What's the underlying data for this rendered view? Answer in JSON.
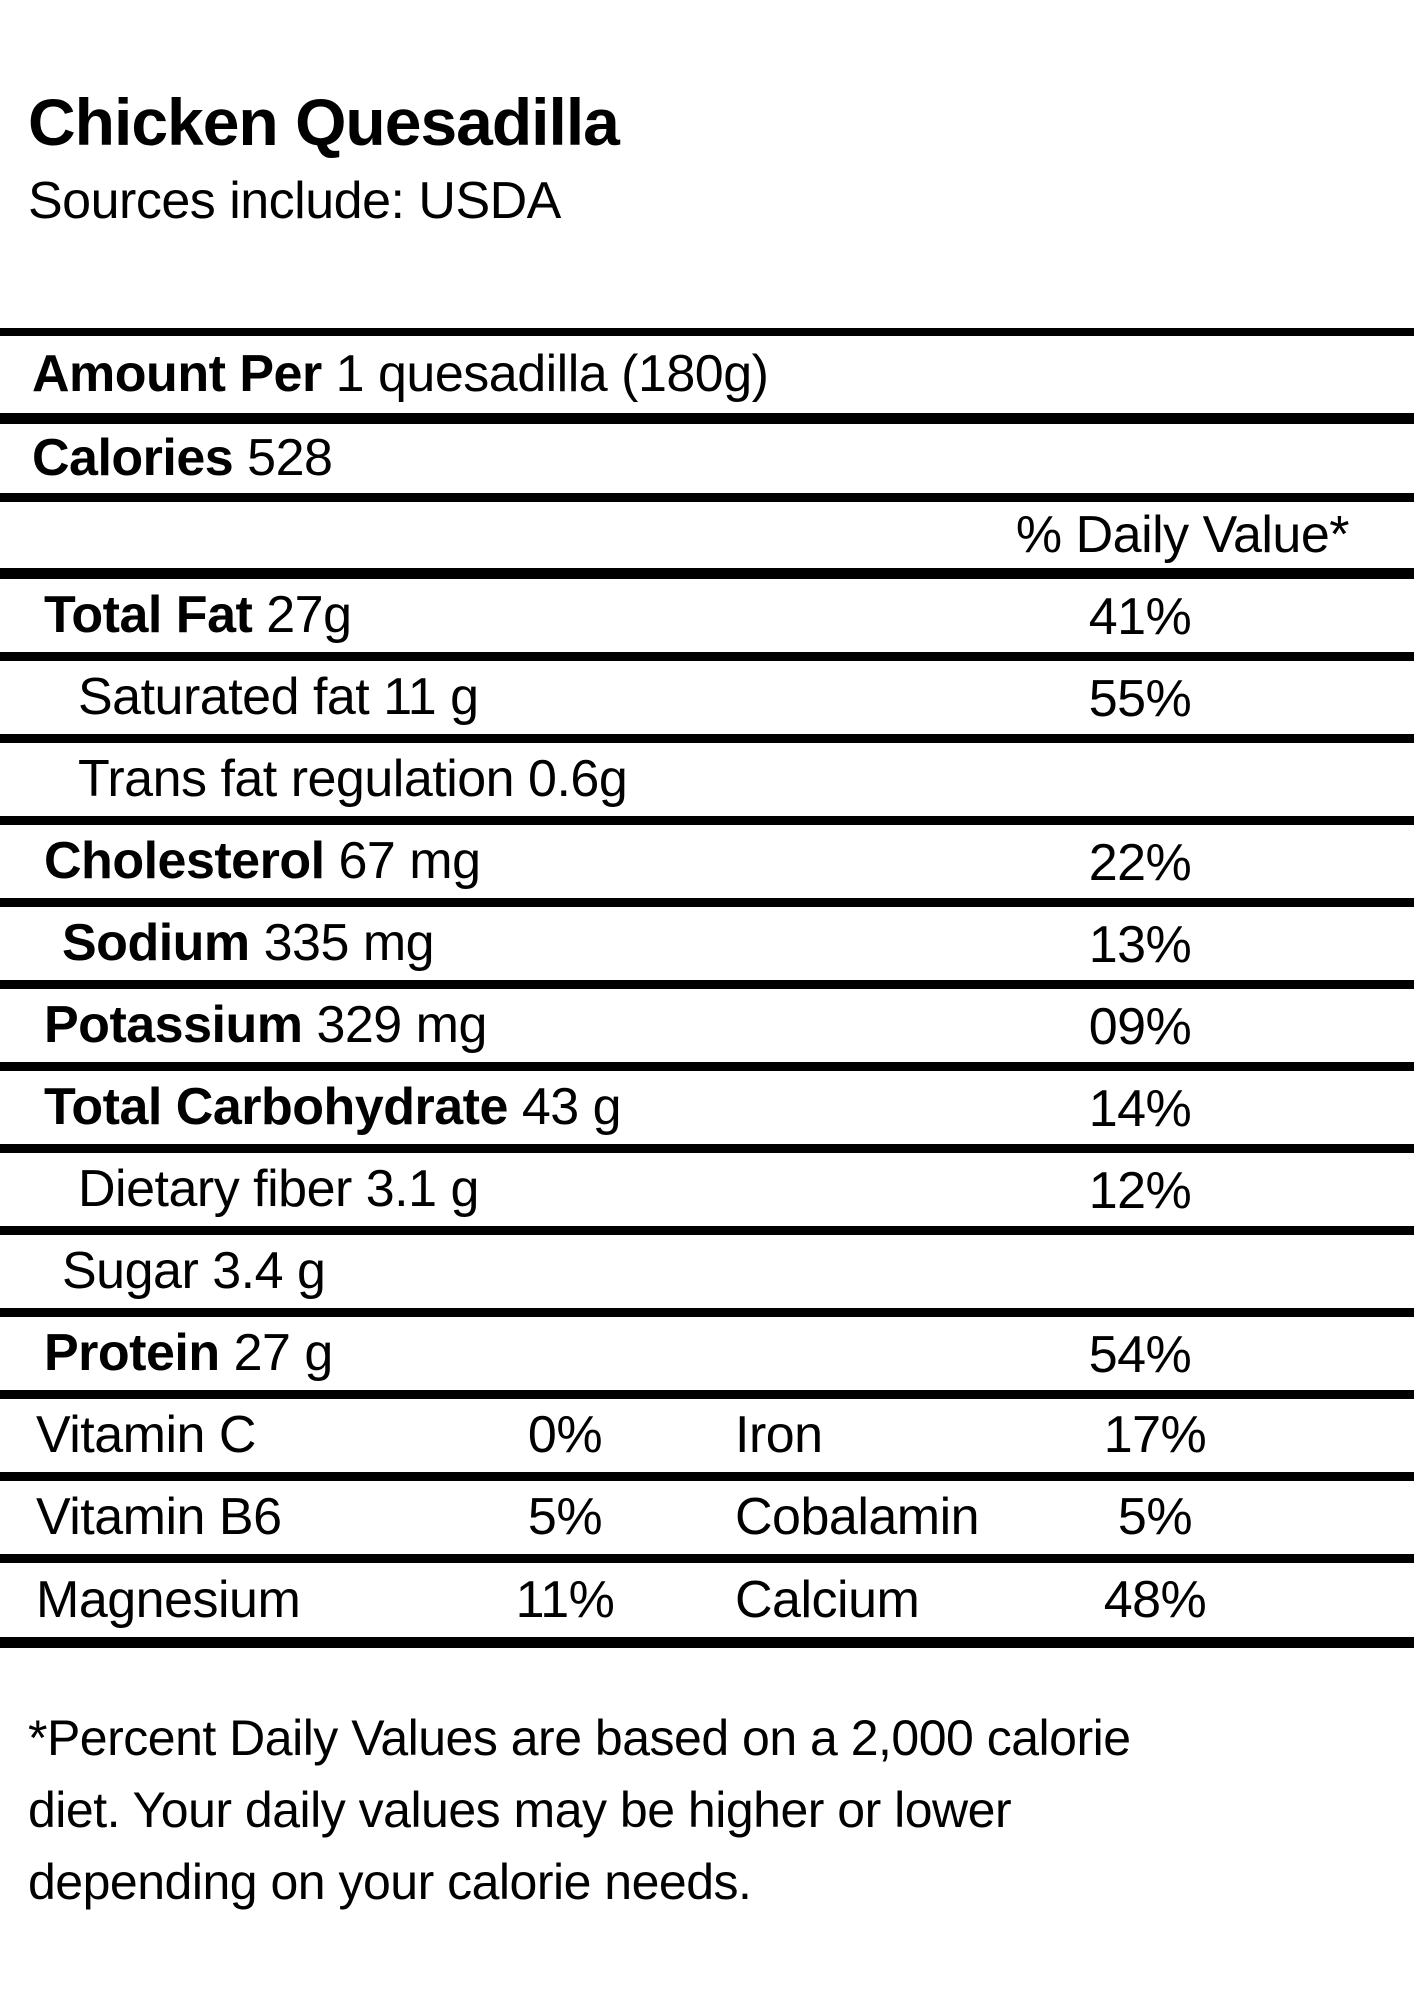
{
  "title": "Chicken Quesadilla",
  "subtitle": "Sources include: USDA",
  "colors": {
    "text": "#000000",
    "background": "#ffffff",
    "rule": "#000000"
  },
  "label": {
    "amount_per_label": "Amount Per",
    "amount_per_value": "1 quesadilla (180g)",
    "calories_label": "Calories",
    "calories_value": "528",
    "daily_value_header": "% Daily Value*",
    "rows": [
      {
        "name": "Total Fat",
        "amount": "27g",
        "dv": "41%"
      },
      {
        "name": "Saturated fat",
        "amount": "11 g",
        "dv": "55%"
      },
      {
        "name": "Trans fat regulation",
        "amount": "0.6g",
        "dv": ""
      },
      {
        "name": "Cholesterol",
        "amount": "67 mg",
        "dv": "22%"
      },
      {
        "name": "Sodium",
        "amount": "335 mg",
        "dv": "13%"
      },
      {
        "name": "Potassium",
        "amount": "329 mg",
        "dv": "09%"
      },
      {
        "name": "Total Carbohydrate",
        "amount": "43 g",
        "dv": "14%"
      },
      {
        "name": "Dietary fiber",
        "amount": "3.1 g",
        "dv": "12%"
      },
      {
        "name": "Sugar",
        "amount": "3.4 g",
        "dv": ""
      },
      {
        "name": "Protein",
        "amount": "27 g",
        "dv": "54%"
      }
    ],
    "micronutrients": [
      {
        "left_name": "Vitamin C",
        "left_dv": "0%",
        "right_name": "Iron",
        "right_dv": "17%"
      },
      {
        "left_name": "Vitamin B6",
        "left_dv": "5%",
        "right_name": "Cobalamin",
        "right_dv": "5%"
      },
      {
        "left_name": "Magnesium",
        "left_dv": "11%",
        "right_name": "Calcium",
        "right_dv": "48%"
      }
    ],
    "footnote_lines": [
      "*Percent Daily Values are based on a 2,000 calorie",
      "diet. Your daily values may be higher or lower",
      "depending on your calorie needs."
    ]
  }
}
